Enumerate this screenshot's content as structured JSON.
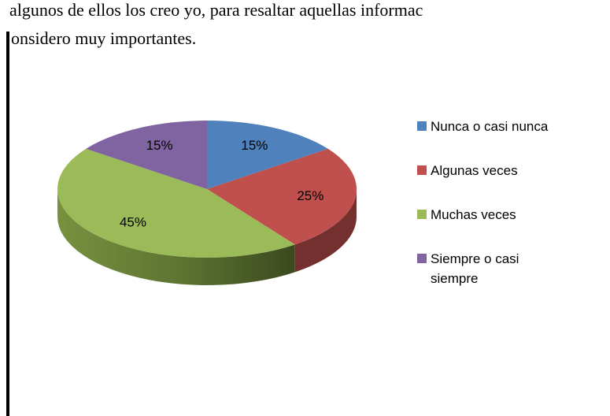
{
  "text_lines": [
    "algunos de ellos los creo yo, para resaltar aquellas informac",
    "onsidero muy importantes."
  ],
  "chart_data": {
    "type": "pie",
    "categories": [
      "Nunca o casi nunca",
      "Algunas veces",
      "Muchas veces",
      "Siempre o casi siempre"
    ],
    "values": [
      15,
      25,
      45,
      15
    ],
    "value_labels": [
      "15%",
      "25%",
      "45%",
      "15%"
    ],
    "colors": [
      "#4f81bd",
      "#c0504d",
      "#9bbb59",
      "#8064a2"
    ],
    "legend": "right"
  }
}
